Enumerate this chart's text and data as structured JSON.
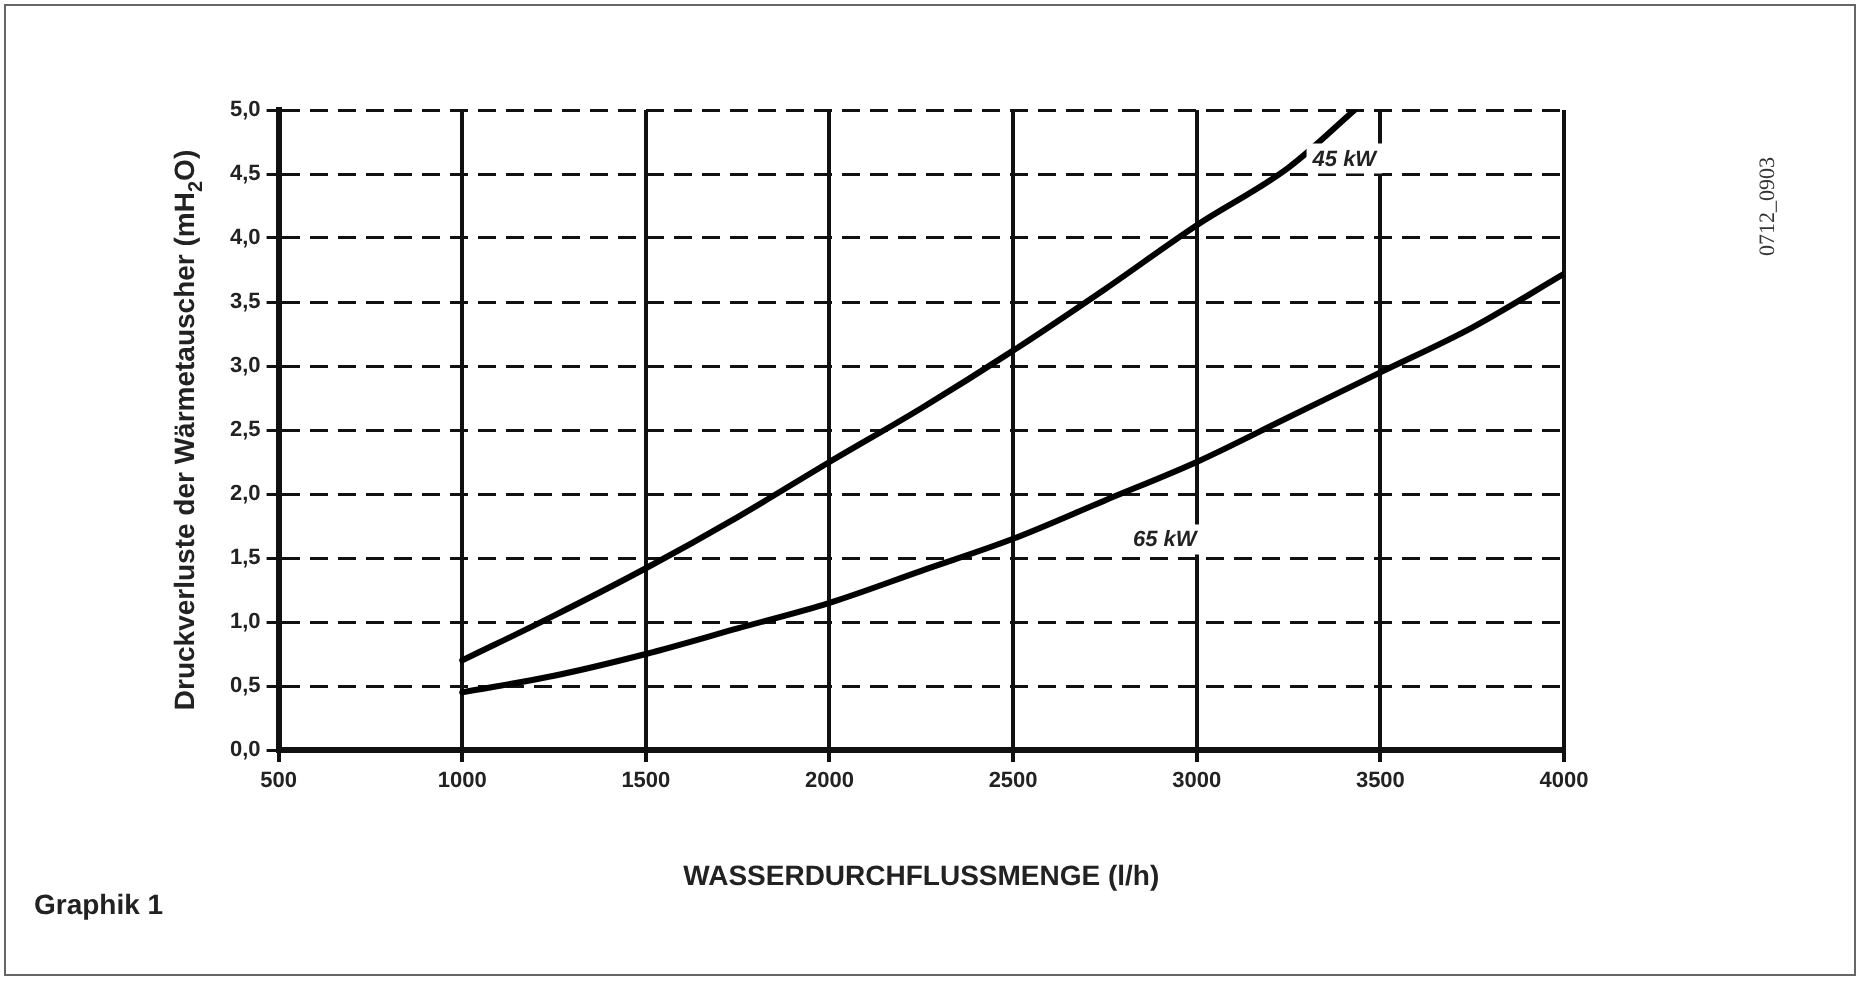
{
  "chart_data": {
    "type": "line",
    "xlabel": "WASSERDURCHFLUSSMENGE (l/h)",
    "ylabel": "Druckverluste der Wärmetauscher (mH$_{2}$O)",
    "annotations": [
      "Graphik 1",
      "0712_0903"
    ],
    "series": [
      {
        "name": "45 kW",
        "color": "#000000",
        "x": [
          1000,
          1250,
          1500,
          1750,
          2000,
          2250,
          2500,
          2750,
          3000,
          3250,
          3430
        ],
        "values": [
          0.7,
          1.05,
          1.42,
          1.82,
          2.25,
          2.67,
          3.12,
          3.6,
          4.1,
          4.55,
          5.0
        ]
      },
      {
        "name": "65 kW",
        "color": "#000000",
        "x": [
          1000,
          1250,
          1500,
          1750,
          2000,
          2250,
          2500,
          2750,
          3000,
          3250,
          3500,
          3750,
          4000
        ],
        "values": [
          0.45,
          0.58,
          0.75,
          0.95,
          1.15,
          1.4,
          1.65,
          1.95,
          2.25,
          2.6,
          2.95,
          3.3,
          3.72
        ]
      }
    ],
    "xlim": [
      500,
      4000
    ],
    "xticks": [
      500,
      1000,
      1500,
      2000,
      2500,
      3000,
      3500,
      4000
    ],
    "ylim": [
      0,
      5
    ],
    "yticks": [
      {
        "value": 0,
        "label": "0,0"
      },
      {
        "value": 0.5,
        "label": "0,5"
      },
      {
        "value": 1,
        "label": "1,0"
      },
      {
        "value": 1.5,
        "label": "1,5"
      },
      {
        "value": 2,
        "label": "2,0"
      },
      {
        "value": 2.5,
        "label": "2,5"
      },
      {
        "value": 3,
        "label": "3,0"
      },
      {
        "value": 3.5,
        "label": "3,5"
      },
      {
        "value": 4,
        "label": "4,0"
      },
      {
        "value": 4.5,
        "label": "4,5"
      },
      {
        "value": 5,
        "label": "5,0"
      }
    ],
    "grid": true,
    "legend": false,
    "marker": "none",
    "line_style": "solid"
  }
}
